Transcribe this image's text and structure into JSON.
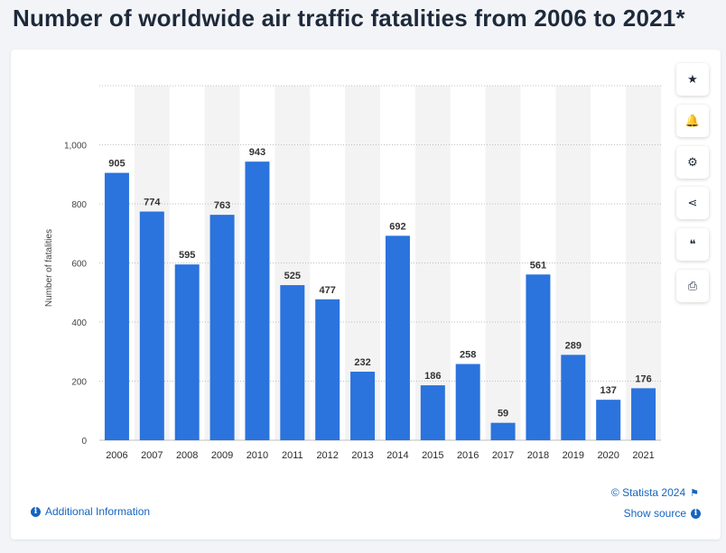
{
  "page": {
    "title": "Number of worldwide air traffic fatalities from 2006 to 2021*"
  },
  "chart_data": {
    "type": "bar",
    "title": "Number of worldwide air traffic fatalities from 2006 to 2021*",
    "xlabel": "",
    "ylabel": "Number of fatalities",
    "categories": [
      "2006",
      "2007",
      "2008",
      "2009",
      "2010",
      "2011",
      "2012",
      "2013",
      "2014",
      "2015",
      "2016",
      "2017",
      "2018",
      "2019",
      "2020",
      "2021"
    ],
    "values": [
      905,
      774,
      595,
      763,
      943,
      525,
      477,
      232,
      692,
      186,
      258,
      59,
      561,
      289,
      137,
      176
    ],
    "value_labels": [
      "905",
      "774",
      "595",
      "763",
      "943",
      "525",
      "477",
      "232",
      "692",
      "186",
      "258",
      "59",
      "561",
      "289",
      "137",
      "176"
    ],
    "ylim": [
      0,
      1200
    ],
    "yticks": [
      0,
      200,
      400,
      600,
      800,
      1000
    ],
    "ytick_labels": [
      "0",
      "200",
      "400",
      "600",
      "800",
      "1,000"
    ],
    "grid": true,
    "bar_color": "#2b73dd"
  },
  "toolbar": {
    "buttons": [
      {
        "name": "favorite",
        "icon": "star-icon",
        "glyph": "★"
      },
      {
        "name": "notification",
        "icon": "bell-icon",
        "glyph": "🔔"
      },
      {
        "name": "settings",
        "icon": "gear-icon",
        "glyph": "⚙"
      },
      {
        "name": "share",
        "icon": "share-icon",
        "glyph": "⋖"
      },
      {
        "name": "cite",
        "icon": "quote-icon",
        "glyph": "❝"
      },
      {
        "name": "print",
        "icon": "print-icon",
        "glyph": "⎙"
      }
    ]
  },
  "footer": {
    "additional_info": "Additional Information",
    "copyright": "© Statista 2024",
    "show_source": "Show source"
  }
}
